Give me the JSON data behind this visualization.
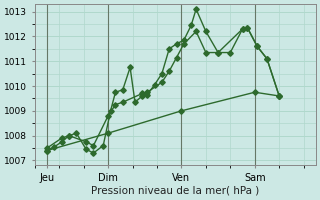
{
  "background_color": "#cce8e4",
  "grid_color": "#b0d8cc",
  "line_color": "#2d6a2d",
  "title": "Pression niveau de la mer( hPa )",
  "ylim": [
    1006.8,
    1013.3
  ],
  "yticks": [
    1007,
    1008,
    1009,
    1010,
    1011,
    1012,
    1013
  ],
  "xtick_labels": [
    "Jeu",
    "Dim",
    "Ven",
    "Sam"
  ],
  "xtick_positions": [
    0.5,
    3.0,
    6.0,
    9.0
  ],
  "xlim": [
    0,
    11.5
  ],
  "vlines": [
    0.5,
    3.0,
    6.0,
    9.0
  ],
  "series1": [
    [
      0.5,
      1007.4
    ],
    [
      0.8,
      1007.55
    ],
    [
      1.1,
      1007.75
    ],
    [
      1.4,
      1008.0
    ],
    [
      1.7,
      1008.1
    ],
    [
      2.1,
      1007.45
    ],
    [
      2.4,
      1007.3
    ],
    [
      2.8,
      1007.6
    ],
    [
      3.1,
      1009.0
    ],
    [
      3.3,
      1009.75
    ],
    [
      3.6,
      1009.85
    ],
    [
      3.9,
      1010.75
    ],
    [
      4.1,
      1009.35
    ],
    [
      4.4,
      1009.6
    ],
    [
      4.6,
      1009.65
    ],
    [
      4.9,
      1010.05
    ],
    [
      5.2,
      1010.5
    ],
    [
      5.5,
      1011.5
    ],
    [
      5.8,
      1011.7
    ],
    [
      6.1,
      1011.85
    ],
    [
      6.4,
      1012.45
    ],
    [
      6.6,
      1013.1
    ],
    [
      7.0,
      1012.2
    ],
    [
      7.5,
      1011.35
    ],
    [
      8.0,
      1011.35
    ],
    [
      8.5,
      1012.3
    ],
    [
      8.7,
      1012.35
    ],
    [
      9.1,
      1011.6
    ],
    [
      9.5,
      1011.1
    ],
    [
      10.0,
      1009.6
    ]
  ],
  "series2": [
    [
      0.5,
      1007.5
    ],
    [
      1.1,
      1007.9
    ],
    [
      1.4,
      1008.0
    ],
    [
      2.1,
      1007.75
    ],
    [
      2.4,
      1007.6
    ],
    [
      3.0,
      1008.8
    ],
    [
      3.3,
      1009.25
    ],
    [
      3.6,
      1009.35
    ],
    [
      4.4,
      1009.7
    ],
    [
      4.6,
      1009.75
    ],
    [
      5.2,
      1010.15
    ],
    [
      5.5,
      1010.6
    ],
    [
      5.8,
      1011.15
    ],
    [
      6.1,
      1011.7
    ],
    [
      6.6,
      1012.2
    ],
    [
      7.0,
      1011.35
    ],
    [
      7.5,
      1011.35
    ],
    [
      8.5,
      1012.3
    ],
    [
      8.7,
      1012.35
    ],
    [
      9.1,
      1011.6
    ],
    [
      9.5,
      1011.1
    ],
    [
      10.0,
      1009.6
    ]
  ],
  "series3": [
    [
      0.5,
      1007.4
    ],
    [
      3.0,
      1008.1
    ],
    [
      6.0,
      1009.0
    ],
    [
      9.0,
      1009.75
    ],
    [
      10.0,
      1009.6
    ]
  ]
}
